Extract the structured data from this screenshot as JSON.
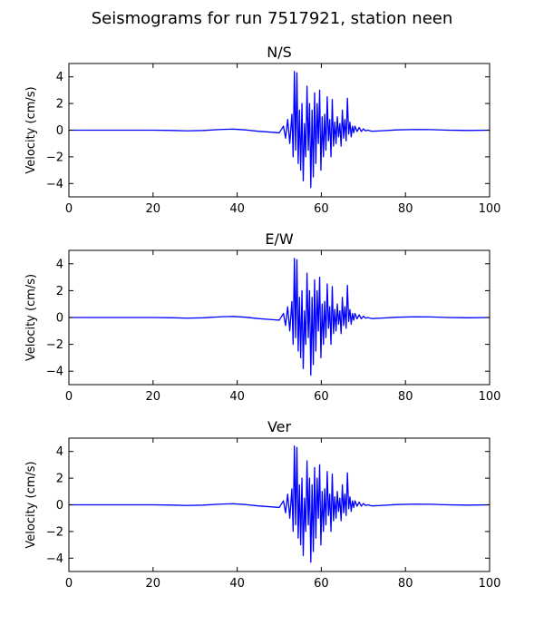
{
  "figure": {
    "title": "Seismograms for run 7517921, station neen"
  },
  "chart_data": [
    {
      "type": "line",
      "title": "N/S",
      "xlabel": "",
      "ylabel": "Velocity (cm/s)",
      "xlim": [
        0,
        100
      ],
      "ylim": [
        -5,
        5
      ],
      "xticks": [
        0,
        20,
        40,
        60,
        80,
        100
      ],
      "yticks": [
        -4,
        -2,
        0,
        2,
        4
      ],
      "xtick_labels": [
        "0",
        "20",
        "40",
        "60",
        "80",
        "100"
      ],
      "ytick_labels": [
        "−4",
        "−2",
        "0",
        "2",
        "4"
      ],
      "grid": false,
      "color": "#0000ff",
      "series": [
        {
          "x": [
            0,
            5,
            10,
            15,
            20,
            25,
            28,
            32,
            36,
            39,
            42,
            45,
            48,
            50,
            51,
            51.5,
            52,
            52.5,
            53,
            53.3,
            53.6,
            53.9,
            54.2,
            54.5,
            54.8,
            55.1,
            55.4,
            55.7,
            56,
            56.3,
            56.6,
            56.9,
            57.2,
            57.5,
            57.8,
            58.1,
            58.4,
            58.7,
            59,
            59.3,
            59.6,
            59.9,
            60.2,
            60.5,
            60.8,
            61.1,
            61.4,
            61.7,
            62,
            62.3,
            62.6,
            62.9,
            63.2,
            63.5,
            63.8,
            64.1,
            64.4,
            64.7,
            65,
            65.3,
            65.6,
            65.9,
            66.2,
            66.5,
            66.8,
            67.1,
            67.4,
            67.7,
            68,
            68.5,
            69,
            69.5,
            70,
            70.5,
            71,
            72,
            74,
            78,
            82,
            86,
            90,
            95,
            100
          ],
          "y": [
            0,
            0,
            0,
            0,
            0,
            -0.02,
            -0.05,
            -0.02,
            0.05,
            0.08,
            0.02,
            -0.08,
            -0.15,
            -0.2,
            0.3,
            -0.6,
            0.8,
            -1.0,
            1.2,
            -2.0,
            4.4,
            -1.5,
            4.3,
            -2.5,
            1.5,
            -3.0,
            2.0,
            -3.8,
            0.5,
            -2.0,
            3.3,
            -1.5,
            2.0,
            -4.3,
            1.5,
            -3.5,
            2.8,
            -2.5,
            2.0,
            -1.0,
            3.0,
            -3.0,
            1.0,
            -2.0,
            1.2,
            -1.5,
            2.5,
            -0.8,
            0.8,
            -2.0,
            2.3,
            -1.2,
            0.6,
            -1.0,
            1.0,
            -0.5,
            0.5,
            -1.2,
            1.5,
            -0.6,
            0.8,
            -0.8,
            2.4,
            -0.3,
            0.6,
            -0.5,
            0.3,
            -0.2,
            0.3,
            -0.1,
            0.2,
            -0.1,
            0.1,
            -0.05,
            0,
            -0.08,
            -0.05,
            0.02,
            0.05,
            0.04,
            0,
            -0.02,
            0
          ]
        }
      ]
    },
    {
      "type": "line",
      "title": "E/W",
      "xlabel": "",
      "ylabel": "Velocity (cm/s)",
      "xlim": [
        0,
        100
      ],
      "ylim": [
        -5,
        5
      ],
      "xticks": [
        0,
        20,
        40,
        60,
        80,
        100
      ],
      "yticks": [
        -4,
        -2,
        0,
        2,
        4
      ],
      "xtick_labels": [
        "0",
        "20",
        "40",
        "60",
        "80",
        "100"
      ],
      "ytick_labels": [
        "−4",
        "−2",
        "0",
        "2",
        "4"
      ],
      "grid": false,
      "color": "#0000ff",
      "series": [
        {
          "x": [
            0,
            5,
            10,
            15,
            20,
            25,
            28,
            32,
            36,
            39,
            42,
            45,
            48,
            50,
            51,
            51.5,
            52,
            52.5,
            53,
            53.3,
            53.6,
            53.9,
            54.2,
            54.5,
            54.8,
            55.1,
            55.4,
            55.7,
            56,
            56.3,
            56.6,
            56.9,
            57.2,
            57.5,
            57.8,
            58.1,
            58.4,
            58.7,
            59,
            59.3,
            59.6,
            59.9,
            60.2,
            60.5,
            60.8,
            61.1,
            61.4,
            61.7,
            62,
            62.3,
            62.6,
            62.9,
            63.2,
            63.5,
            63.8,
            64.1,
            64.4,
            64.7,
            65,
            65.3,
            65.6,
            65.9,
            66.2,
            66.5,
            66.8,
            67.1,
            67.4,
            67.7,
            68,
            68.5,
            69,
            69.5,
            70,
            70.5,
            71,
            72,
            74,
            78,
            82,
            86,
            90,
            95,
            100
          ],
          "y": [
            0,
            0,
            0,
            0,
            0,
            -0.02,
            -0.05,
            -0.02,
            0.05,
            0.08,
            0.02,
            -0.08,
            -0.15,
            -0.2,
            0.3,
            -0.6,
            0.8,
            -1.0,
            1.2,
            -2.0,
            4.4,
            -1.5,
            4.3,
            -2.5,
            1.5,
            -3.0,
            2.0,
            -3.8,
            0.5,
            -2.0,
            3.3,
            -1.5,
            2.0,
            -4.3,
            1.5,
            -3.5,
            2.8,
            -2.5,
            2.0,
            -1.0,
            3.0,
            -3.0,
            1.0,
            -2.0,
            1.2,
            -1.5,
            2.5,
            -0.8,
            0.8,
            -2.0,
            2.3,
            -1.2,
            0.6,
            -1.0,
            1.0,
            -0.5,
            0.5,
            -1.2,
            1.5,
            -0.6,
            0.8,
            -0.8,
            2.4,
            -0.3,
            0.6,
            -0.5,
            0.3,
            -0.2,
            0.3,
            -0.1,
            0.2,
            -0.1,
            0.1,
            -0.05,
            0,
            -0.08,
            -0.05,
            0.02,
            0.05,
            0.04,
            0,
            -0.02,
            0
          ]
        }
      ]
    },
    {
      "type": "line",
      "title": "Ver",
      "xlabel": "",
      "ylabel": "Velocity (cm/s)",
      "xlim": [
        0,
        100
      ],
      "ylim": [
        -5,
        5
      ],
      "xticks": [
        0,
        20,
        40,
        60,
        80,
        100
      ],
      "yticks": [
        -4,
        -2,
        0,
        2,
        4
      ],
      "xtick_labels": [
        "0",
        "20",
        "40",
        "60",
        "80",
        "100"
      ],
      "ytick_labels": [
        "−4",
        "−2",
        "0",
        "2",
        "4"
      ],
      "grid": false,
      "color": "#0000ff",
      "series": [
        {
          "x": [
            0,
            5,
            10,
            15,
            20,
            25,
            28,
            32,
            36,
            39,
            42,
            45,
            48,
            50,
            51,
            51.5,
            52,
            52.5,
            53,
            53.3,
            53.6,
            53.9,
            54.2,
            54.5,
            54.8,
            55.1,
            55.4,
            55.7,
            56,
            56.3,
            56.6,
            56.9,
            57.2,
            57.5,
            57.8,
            58.1,
            58.4,
            58.7,
            59,
            59.3,
            59.6,
            59.9,
            60.2,
            60.5,
            60.8,
            61.1,
            61.4,
            61.7,
            62,
            62.3,
            62.6,
            62.9,
            63.2,
            63.5,
            63.8,
            64.1,
            64.4,
            64.7,
            65,
            65.3,
            65.6,
            65.9,
            66.2,
            66.5,
            66.8,
            67.1,
            67.4,
            67.7,
            68,
            68.5,
            69,
            69.5,
            70,
            70.5,
            71,
            72,
            74,
            78,
            82,
            86,
            90,
            95,
            100
          ],
          "y": [
            0,
            0,
            0,
            0,
            0,
            -0.02,
            -0.05,
            -0.02,
            0.05,
            0.08,
            0.02,
            -0.08,
            -0.15,
            -0.2,
            0.3,
            -0.6,
            0.8,
            -1.0,
            1.2,
            -2.0,
            4.4,
            -1.5,
            4.3,
            -2.5,
            1.5,
            -3.0,
            2.0,
            -3.8,
            0.5,
            -2.0,
            3.3,
            -1.5,
            2.0,
            -4.3,
            1.5,
            -3.5,
            2.8,
            -2.5,
            2.0,
            -1.0,
            3.0,
            -3.0,
            1.0,
            -2.0,
            1.2,
            -1.5,
            2.5,
            -0.8,
            0.8,
            -2.0,
            2.3,
            -1.2,
            0.6,
            -1.0,
            1.0,
            -0.5,
            0.5,
            -1.2,
            1.5,
            -0.6,
            0.8,
            -0.8,
            2.4,
            -0.3,
            0.6,
            -0.5,
            0.3,
            -0.2,
            0.3,
            -0.1,
            0.2,
            -0.1,
            0.1,
            -0.05,
            0,
            -0.08,
            -0.05,
            0.02,
            0.05,
            0.04,
            0,
            -0.02,
            0
          ]
        }
      ]
    }
  ]
}
